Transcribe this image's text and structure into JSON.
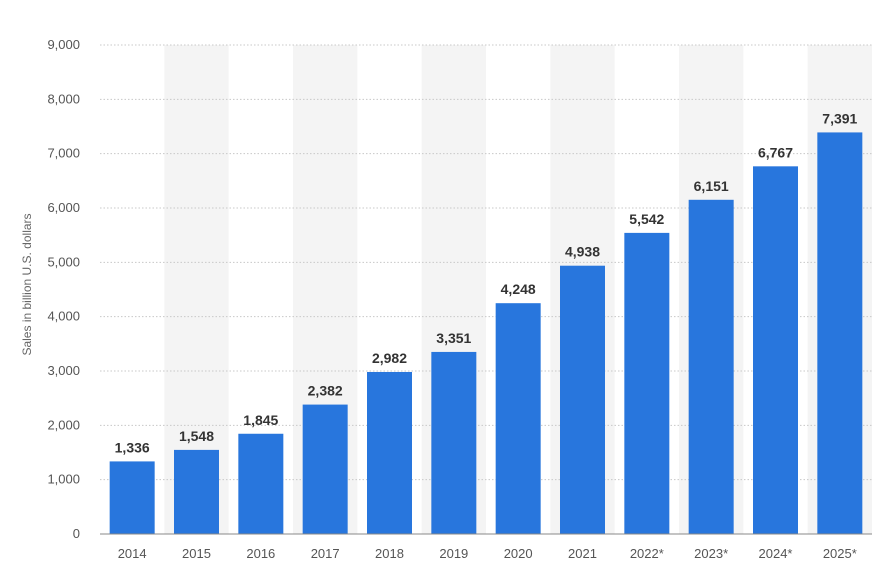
{
  "chart_data": {
    "type": "bar",
    "ylabel": "Sales in billion U.S. dollars",
    "xlabel": "",
    "title": "",
    "categories": [
      "2014",
      "2015",
      "2016",
      "2017",
      "2018",
      "2019",
      "2020",
      "2021",
      "2022*",
      "2023*",
      "2024*",
      "2025*"
    ],
    "values": [
      1336,
      1548,
      1845,
      2382,
      2982,
      3351,
      4248,
      4938,
      5542,
      6151,
      6767,
      7391
    ],
    "value_labels": [
      "1,336",
      "1,548",
      "1,845",
      "2,382",
      "2,982",
      "3,351",
      "4,248",
      "4,938",
      "5,542",
      "6,151",
      "6,767",
      "7,391"
    ],
    "y_ticks": [
      0,
      1000,
      2000,
      3000,
      4000,
      5000,
      6000,
      7000,
      8000,
      9000
    ],
    "y_tick_labels": [
      "0",
      "1,000",
      "2,000",
      "3,000",
      "4,000",
      "5,000",
      "6,000",
      "7,000",
      "8,000",
      "9,000"
    ],
    "ylim": [
      0,
      9000
    ],
    "grid": true,
    "legend": "none",
    "colors": {
      "bar": "#2876dd",
      "grid": "#c8c8c8",
      "band": "#f4f4f4"
    }
  }
}
